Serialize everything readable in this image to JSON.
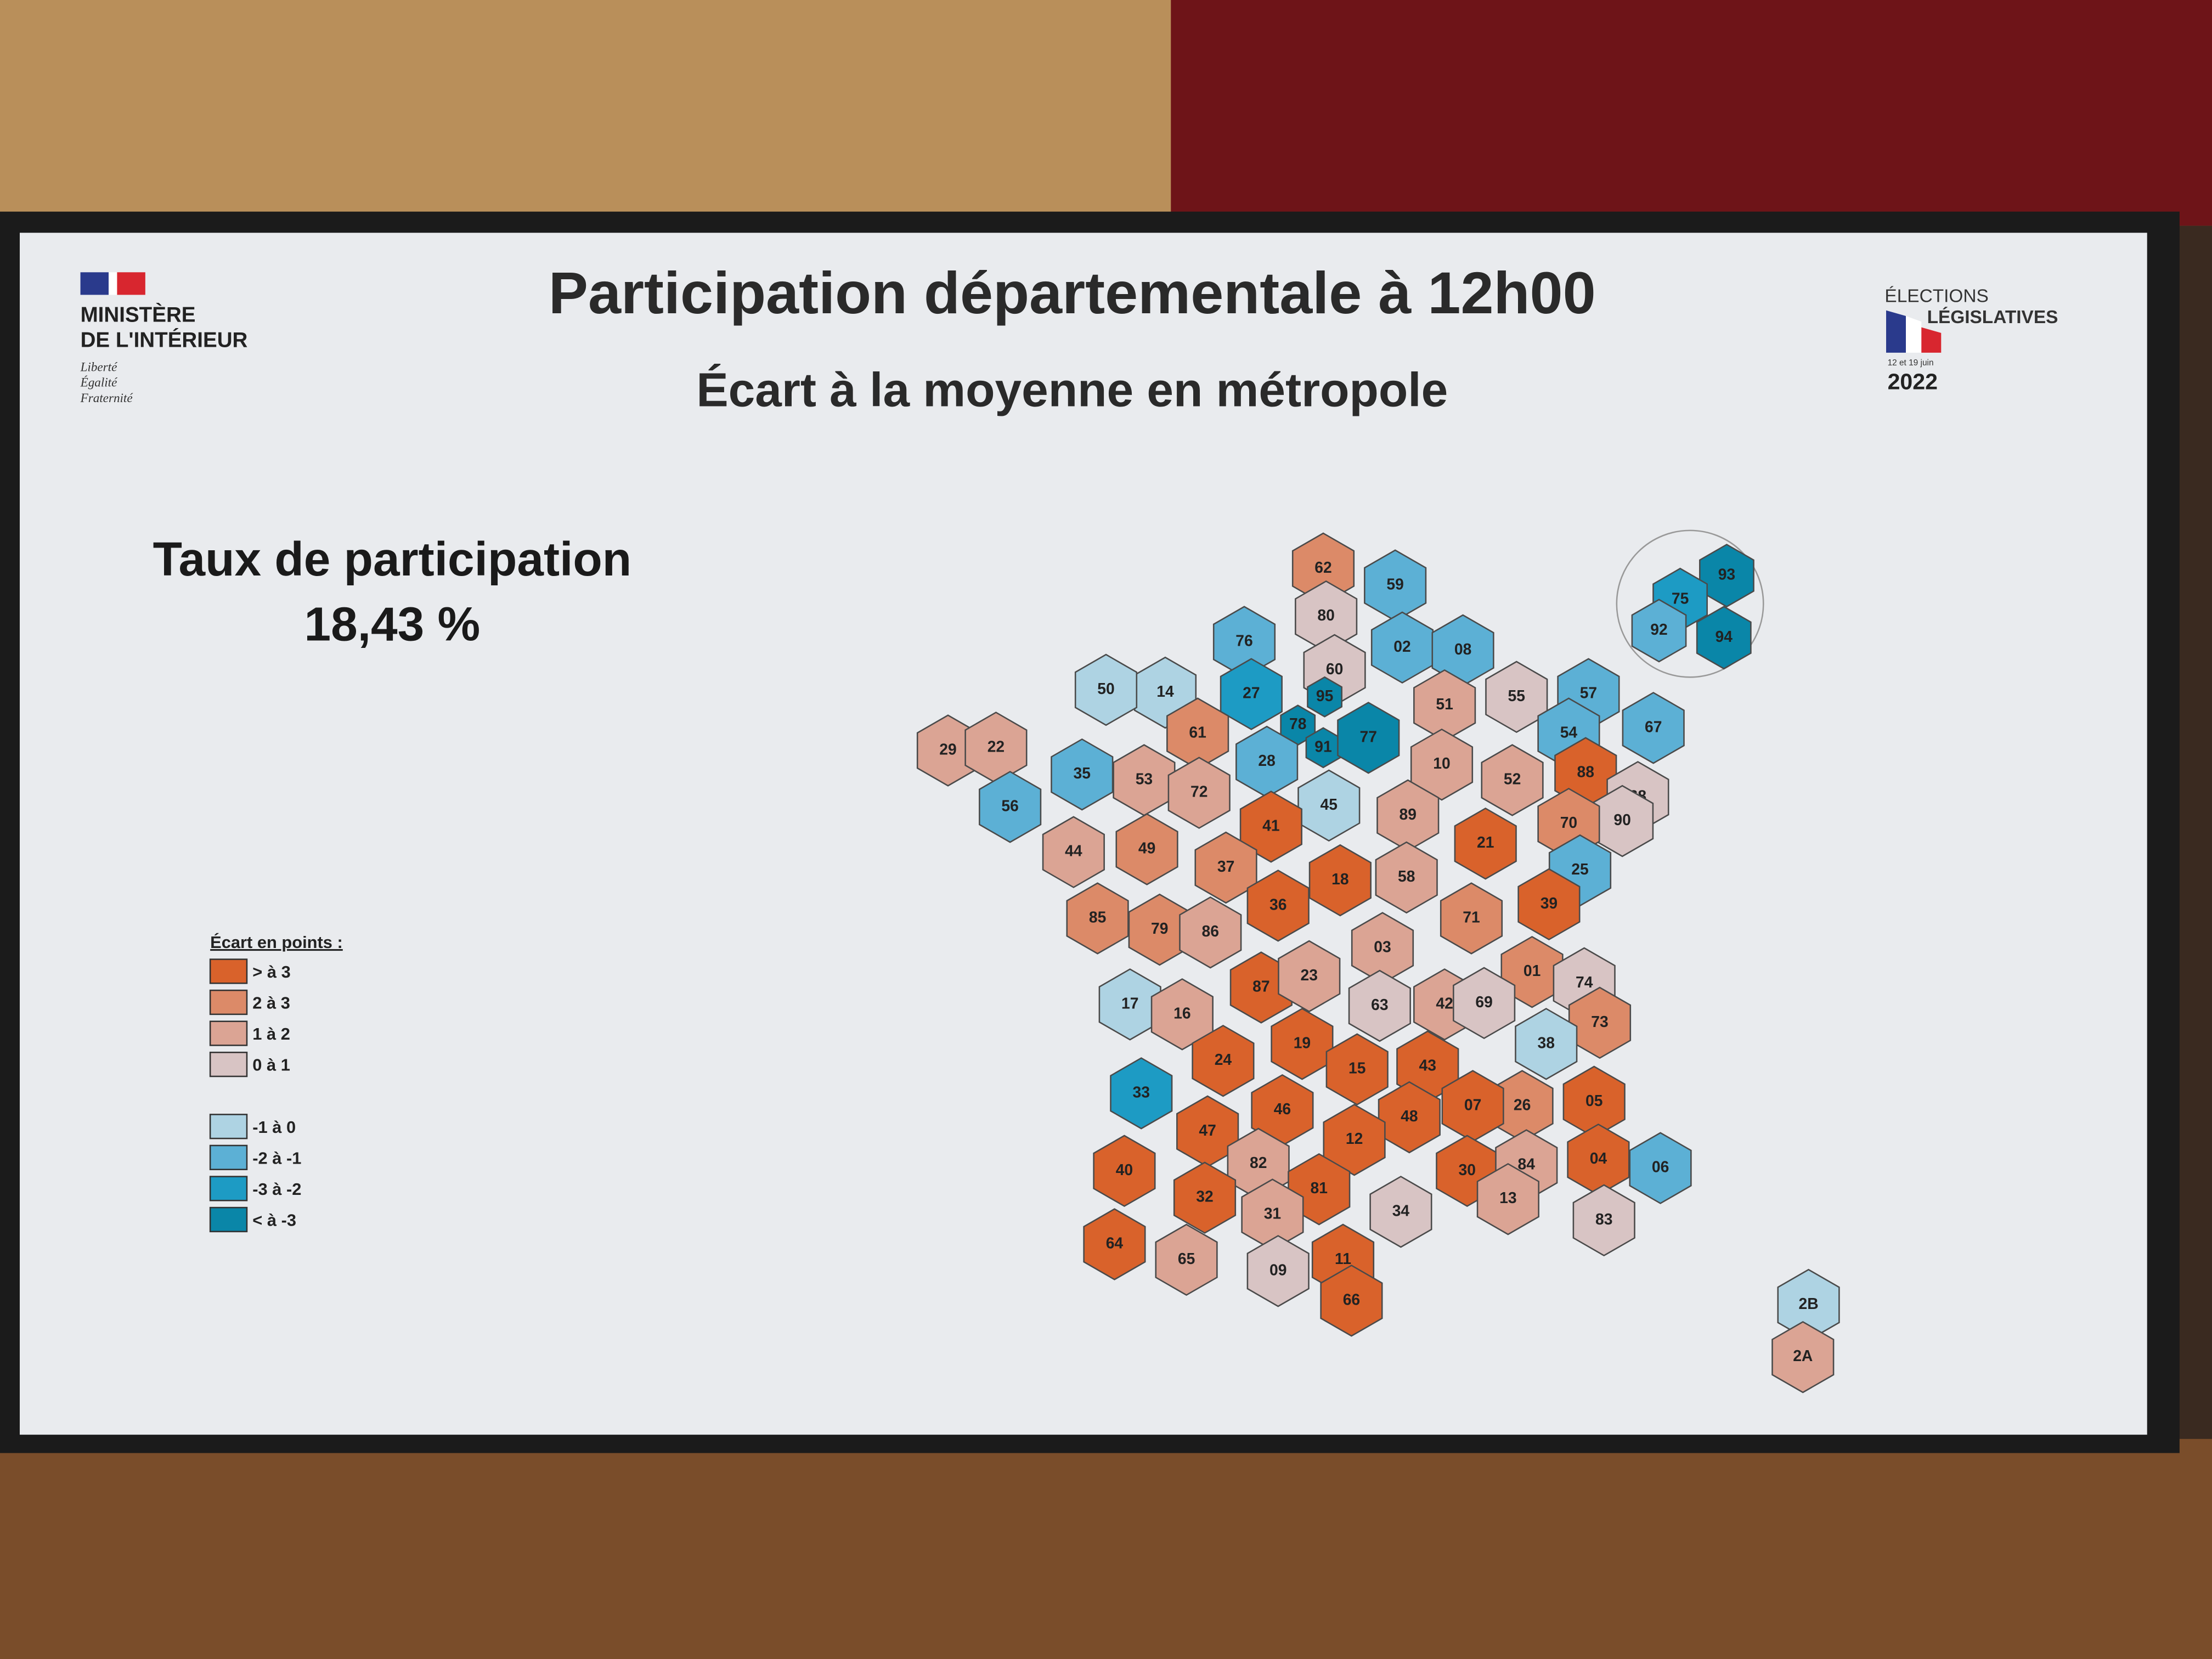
{
  "header": {
    "ministry": [
      "MINISTÈRE",
      "DE L'INTÉRIEUR"
    ],
    "motto": [
      "Liberté",
      "Égalité",
      "Fraternité"
    ],
    "elections": [
      "ÉLECTIONS",
      "LÉGISLATIVES"
    ],
    "dates": "12 et 19 juin",
    "year": "2022"
  },
  "title": "Participation départementale à 12h00",
  "subtitle": "Écart à la moyenne en métropole",
  "summary": {
    "label": "Taux de participation",
    "value": "18,43 %"
  },
  "legend": {
    "title": "Écart en points :",
    "items": [
      {
        "label": "> à 3",
        "color": "#d9622b"
      },
      {
        "label": "2 à 3",
        "color": "#dc8a68"
      },
      {
        "label": "1 à 2",
        "color": "#dba494"
      },
      {
        "label": "0 à 1",
        "color": "#d8c4c4"
      },
      {
        "label": "-1 à 0",
        "color": "#aed3e3"
      },
      {
        "label": "-2 à -1",
        "color": "#5cb0d5"
      },
      {
        "label": "-3 à -2",
        "color": "#1d9bc4"
      },
      {
        "label": "< à -3",
        "color": "#0a86a8"
      }
    ]
  },
  "departments": [
    {
      "code": "62",
      "class": 1
    },
    {
      "code": "59",
      "class": 5
    },
    {
      "code": "80",
      "class": 3
    },
    {
      "code": "76",
      "class": 5
    },
    {
      "code": "60",
      "class": 3
    },
    {
      "code": "02",
      "class": 5
    },
    {
      "code": "08",
      "class": 5
    },
    {
      "code": "14",
      "class": 4
    },
    {
      "code": "50",
      "class": 4
    },
    {
      "code": "27",
      "class": 6
    },
    {
      "code": "95",
      "class": 7
    },
    {
      "code": "78",
      "class": 7
    },
    {
      "code": "91",
      "class": 7
    },
    {
      "code": "77",
      "class": 7
    },
    {
      "code": "51",
      "class": 2
    },
    {
      "code": "55",
      "class": 3
    },
    {
      "code": "57",
      "class": 5
    },
    {
      "code": "54",
      "class": 5
    },
    {
      "code": "67",
      "class": 5
    },
    {
      "code": "29",
      "class": 2
    },
    {
      "code": "22",
      "class": 2
    },
    {
      "code": "35",
      "class": 5
    },
    {
      "code": "56",
      "class": 5
    },
    {
      "code": "61",
      "class": 1
    },
    {
      "code": "53",
      "class": 2
    },
    {
      "code": "72",
      "class": 2
    },
    {
      "code": "28",
      "class": 5
    },
    {
      "code": "10",
      "class": 2
    },
    {
      "code": "52",
      "class": 2
    },
    {
      "code": "88",
      "class": 0
    },
    {
      "code": "68",
      "class": 3
    },
    {
      "code": "90",
      "class": 3
    },
    {
      "code": "45",
      "class": 4
    },
    {
      "code": "41",
      "class": 0
    },
    {
      "code": "89",
      "class": 2
    },
    {
      "code": "21",
      "class": 0
    },
    {
      "code": "70",
      "class": 1
    },
    {
      "code": "25",
      "class": 5
    },
    {
      "code": "44",
      "class": 2
    },
    {
      "code": "49",
      "class": 1
    },
    {
      "code": "37",
      "class": 1
    },
    {
      "code": "18",
      "class": 0
    },
    {
      "code": "58",
      "class": 2
    },
    {
      "code": "39",
      "class": 0
    },
    {
      "code": "85",
      "class": 1
    },
    {
      "code": "79",
      "class": 1
    },
    {
      "code": "86",
      "class": 2
    },
    {
      "code": "36",
      "class": 0
    },
    {
      "code": "71",
      "class": 1
    },
    {
      "code": "03",
      "class": 2
    },
    {
      "code": "01",
      "class": 1
    },
    {
      "code": "74",
      "class": 3
    },
    {
      "code": "17",
      "class": 4
    },
    {
      "code": "16",
      "class": 2
    },
    {
      "code": "87",
      "class": 0
    },
    {
      "code": "23",
      "class": 2
    },
    {
      "code": "63",
      "class": 3
    },
    {
      "code": "42",
      "class": 2
    },
    {
      "code": "69",
      "class": 3
    },
    {
      "code": "73",
      "class": 1
    },
    {
      "code": "38",
      "class": 4
    },
    {
      "code": "33",
      "class": 6
    },
    {
      "code": "24",
      "class": 0
    },
    {
      "code": "19",
      "class": 0
    },
    {
      "code": "15",
      "class": 0
    },
    {
      "code": "43",
      "class": 0
    },
    {
      "code": "26",
      "class": 1
    },
    {
      "code": "05",
      "class": 0
    },
    {
      "code": "46",
      "class": 0
    },
    {
      "code": "48",
      "class": 0
    },
    {
      "code": "07",
      "class": 0
    },
    {
      "code": "47",
      "class": 0
    },
    {
      "code": "12",
      "class": 0
    },
    {
      "code": "40",
      "class": 0
    },
    {
      "code": "82",
      "class": 2
    },
    {
      "code": "81",
      "class": 0
    },
    {
      "code": "30",
      "class": 0
    },
    {
      "code": "84",
      "class": 2
    },
    {
      "code": "04",
      "class": 0
    },
    {
      "code": "06",
      "class": 5
    },
    {
      "code": "32",
      "class": 0
    },
    {
      "code": "31",
      "class": 2
    },
    {
      "code": "34",
      "class": 3
    },
    {
      "code": "13",
      "class": 2
    },
    {
      "code": "83",
      "class": 3
    },
    {
      "code": "64",
      "class": 0
    },
    {
      "code": "65",
      "class": 2
    },
    {
      "code": "09",
      "class": 3
    },
    {
      "code": "11",
      "class": 0
    },
    {
      "code": "66",
      "class": 0
    },
    {
      "code": "93",
      "class": 7
    },
    {
      "code": "75",
      "class": 6
    },
    {
      "code": "92",
      "class": 5
    },
    {
      "code": "94",
      "class": 7
    },
    {
      "code": "2B",
      "class": 4
    },
    {
      "code": "2A",
      "class": 2
    }
  ]
}
